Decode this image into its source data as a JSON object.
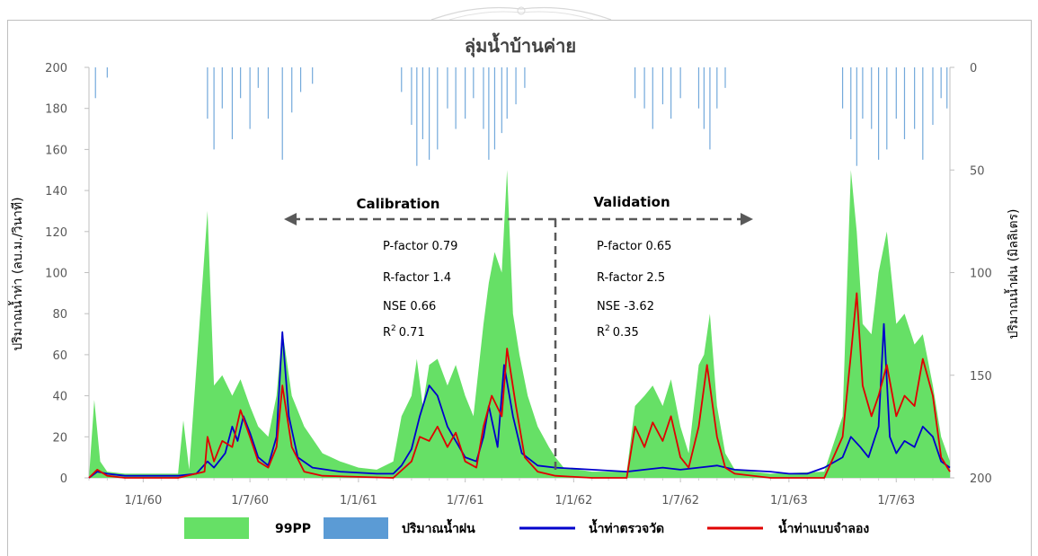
{
  "chart_data": {
    "type": "line",
    "title": "ลุ่มน้ำบ้านค่าย",
    "ylabel_left": "ปริมาณน้ำท่า (ลบ.ม./วินาที)",
    "ylabel_right": "ปริมาณน้ำฝน (มิลลิเตร)",
    "ylim_left": [
      0,
      200
    ],
    "ylim_right": [
      200,
      0
    ],
    "yticks_left": [
      "0",
      "20",
      "40",
      "60",
      "80",
      "100",
      "120",
      "140",
      "160",
      "180",
      "200"
    ],
    "yticks_right": [
      "0",
      "50",
      "100",
      "150",
      "200"
    ],
    "x_start": "1/10/59",
    "x_end": "30/9/63",
    "x_ticks": [
      "1/1/60",
      "1/7/60",
      "1/1/61",
      "1/7/61",
      "1/1/62",
      "1/7/62",
      "1/1/63",
      "1/7/63"
    ],
    "split_date": "1/12/61",
    "periods": {
      "calibration": {
        "label": "Calibration",
        "stats": [
          "P-factor 0.79",
          "R-factor 1.4",
          "NSE 0.66"
        ],
        "r2_value": "0.71"
      },
      "validation": {
        "label": "Validation",
        "stats": [
          "P-factor 0.65",
          "R-factor 2.5",
          "NSE -3.62"
        ],
        "r2_value": "0.35"
      }
    },
    "r2_prefix": "R",
    "r2_sup": "2",
    "legend": [
      {
        "name": "99PP",
        "color": "#66e066",
        "kind": "box"
      },
      {
        "name": "ปริมาณน้ำฝน",
        "color": "#5b9bd5",
        "kind": "box"
      },
      {
        "name": "น้ำท่าตรวจวัด",
        "color": "#0000cc",
        "kind": "line"
      },
      {
        "name": "น้ำท่าแบบจำลอง",
        "color": "#e00000",
        "kind": "line"
      }
    ],
    "series": [
      {
        "name": "น้ำท่าตรวจวัด",
        "color": "#0000cc",
        "points": [
          [
            "1/10/59",
            0
          ],
          [
            "15/10/59",
            3
          ],
          [
            "1/11/59",
            2
          ],
          [
            "1/12/59",
            1
          ],
          [
            "1/1/60",
            1
          ],
          [
            "1/3/60",
            1
          ],
          [
            "1/4/60",
            2
          ],
          [
            "20/4/60",
            8
          ],
          [
            "1/5/60",
            5
          ],
          [
            "20/5/60",
            12
          ],
          [
            "1/6/60",
            25
          ],
          [
            "10/6/60",
            18
          ],
          [
            "20/6/60",
            30
          ],
          [
            "1/7/60",
            22
          ],
          [
            "15/7/60",
            10
          ],
          [
            "1/8/60",
            6
          ],
          [
            "15/8/60",
            20
          ],
          [
            "25/8/60",
            71
          ],
          [
            "5/9/60",
            30
          ],
          [
            "20/9/60",
            10
          ],
          [
            "15/10/60",
            5
          ],
          [
            "1/12/60",
            3
          ],
          [
            "1/2/61",
            2
          ],
          [
            "1/3/61",
            2
          ],
          [
            "15/3/61",
            6
          ],
          [
            "1/4/61",
            14
          ],
          [
            "15/4/61",
            30
          ],
          [
            "1/5/61",
            45
          ],
          [
            "15/5/61",
            40
          ],
          [
            "1/6/61",
            25
          ],
          [
            "15/6/61",
            18
          ],
          [
            "1/7/61",
            10
          ],
          [
            "20/7/61",
            8
          ],
          [
            "1/8/61",
            20
          ],
          [
            "10/8/61",
            35
          ],
          [
            "25/8/61",
            15
          ],
          [
            "5/9/61",
            55
          ],
          [
            "20/9/61",
            30
          ],
          [
            "5/10/61",
            12
          ],
          [
            "1/11/61",
            6
          ],
          [
            "1/12/61",
            5
          ],
          [
            "1/2/62",
            4
          ],
          [
            "1/4/62",
            3
          ],
          [
            "1/5/62",
            4
          ],
          [
            "1/6/62",
            5
          ],
          [
            "1/7/62",
            4
          ],
          [
            "1/8/62",
            5
          ],
          [
            "1/9/62",
            6
          ],
          [
            "1/10/62",
            4
          ],
          [
            "1/12/62",
            3
          ],
          [
            "1/1/63",
            2
          ],
          [
            "1/2/63",
            2
          ],
          [
            "1/3/63",
            5
          ],
          [
            "1/4/63",
            10
          ],
          [
            "15/4/63",
            20
          ],
          [
            "1/5/63",
            15
          ],
          [
            "15/5/63",
            10
          ],
          [
            "1/6/63",
            25
          ],
          [
            "10/6/63",
            75
          ],
          [
            "20/6/63",
            20
          ],
          [
            "1/7/63",
            12
          ],
          [
            "15/7/63",
            18
          ],
          [
            "1/8/63",
            15
          ],
          [
            "15/8/63",
            25
          ],
          [
            "1/9/63",
            20
          ],
          [
            "15/9/63",
            8
          ],
          [
            "30/9/63",
            5
          ]
        ]
      },
      {
        "name": "น้ำท่าแบบจำลอง",
        "color": "#e00000",
        "points": [
          [
            "1/10/59",
            0
          ],
          [
            "15/10/59",
            4
          ],
          [
            "1/11/59",
            1
          ],
          [
            "1/12/59",
            0
          ],
          [
            "1/1/60",
            0
          ],
          [
            "1/3/60",
            0
          ],
          [
            "15/4/60",
            3
          ],
          [
            "20/4/60",
            20
          ],
          [
            "1/5/60",
            8
          ],
          [
            "15/5/60",
            18
          ],
          [
            "1/6/60",
            15
          ],
          [
            "15/6/60",
            33
          ],
          [
            "1/7/60",
            20
          ],
          [
            "15/7/60",
            8
          ],
          [
            "1/8/60",
            5
          ],
          [
            "15/8/60",
            15
          ],
          [
            "25/8/60",
            45
          ],
          [
            "10/9/60",
            15
          ],
          [
            "1/10/60",
            3
          ],
          [
            "1/11/60",
            1
          ],
          [
            "1/3/61",
            0
          ],
          [
            "1/4/61",
            8
          ],
          [
            "15/4/61",
            20
          ],
          [
            "1/5/61",
            18
          ],
          [
            "15/5/61",
            25
          ],
          [
            "1/6/61",
            15
          ],
          [
            "15/6/61",
            22
          ],
          [
            "1/7/61",
            8
          ],
          [
            "20/7/61",
            5
          ],
          [
            "1/8/61",
            25
          ],
          [
            "15/8/61",
            40
          ],
          [
            "1/9/61",
            30
          ],
          [
            "10/9/61",
            63
          ],
          [
            "25/9/61",
            35
          ],
          [
            "10/10/61",
            10
          ],
          [
            "1/11/61",
            3
          ],
          [
            "1/12/61",
            1
          ],
          [
            "1/2/62",
            0
          ],
          [
            "1/4/62",
            0
          ],
          [
            "15/4/62",
            25
          ],
          [
            "1/5/62",
            15
          ],
          [
            "15/5/62",
            27
          ],
          [
            "1/6/62",
            18
          ],
          [
            "15/6/62",
            30
          ],
          [
            "1/7/62",
            10
          ],
          [
            "15/7/62",
            5
          ],
          [
            "1/8/62",
            25
          ],
          [
            "15/8/62",
            55
          ],
          [
            "1/9/62",
            20
          ],
          [
            "15/9/62",
            5
          ],
          [
            "1/10/62",
            2
          ],
          [
            "1/12/62",
            0
          ],
          [
            "1/3/63",
            0
          ],
          [
            "1/4/63",
            20
          ],
          [
            "15/4/63",
            60
          ],
          [
            "25/4/63",
            90
          ],
          [
            "5/5/63",
            45
          ],
          [
            "20/5/63",
            30
          ],
          [
            "1/6/63",
            40
          ],
          [
            "15/6/63",
            55
          ],
          [
            "1/7/63",
            30
          ],
          [
            "15/7/63",
            40
          ],
          [
            "1/8/63",
            35
          ],
          [
            "15/8/63",
            58
          ],
          [
            "1/9/63",
            40
          ],
          [
            "15/9/63",
            10
          ],
          [
            "30/9/63",
            3
          ]
        ]
      },
      {
        "name": "99PP",
        "color": "#66e066",
        "upper": [
          [
            "1/10/59",
            0
          ],
          [
            "10/10/59",
            38
          ],
          [
            "20/10/59",
            8
          ],
          [
            "1/11/59",
            3
          ],
          [
            "1/12/59",
            2
          ],
          [
            "1/2/60",
            2
          ],
          [
            "1/3/60",
            2
          ],
          [
            "10/3/60",
            28
          ],
          [
            "20/3/60",
            4
          ],
          [
            "20/4/60",
            130
          ],
          [
            "1/5/60",
            45
          ],
          [
            "15/5/60",
            50
          ],
          [
            "1/6/60",
            40
          ],
          [
            "15/6/60",
            48
          ],
          [
            "1/7/60",
            35
          ],
          [
            "15/7/60",
            25
          ],
          [
            "1/8/60",
            20
          ],
          [
            "15/8/60",
            40
          ],
          [
            "25/8/60",
            72
          ],
          [
            "10/9/60",
            40
          ],
          [
            "1/10/60",
            25
          ],
          [
            "1/11/60",
            12
          ],
          [
            "1/12/60",
            8
          ],
          [
            "1/1/61",
            5
          ],
          [
            "1/2/61",
            4
          ],
          [
            "1/3/61",
            8
          ],
          [
            "15/3/61",
            30
          ],
          [
            "1/4/61",
            40
          ],
          [
            "10/4/61",
            58
          ],
          [
            "20/4/61",
            35
          ],
          [
            "1/5/61",
            55
          ],
          [
            "15/5/61",
            58
          ],
          [
            "1/6/61",
            45
          ],
          [
            "15/6/61",
            55
          ],
          [
            "1/7/61",
            40
          ],
          [
            "15/7/61",
            30
          ],
          [
            "1/8/61",
            75
          ],
          [
            "10/8/61",
            95
          ],
          [
            "20/8/61",
            110
          ],
          [
            "1/9/61",
            100
          ],
          [
            "10/9/61",
            150
          ],
          [
            "20/9/61",
            80
          ],
          [
            "1/10/61",
            60
          ],
          [
            "15/10/61",
            40
          ],
          [
            "1/11/61",
            25
          ],
          [
            "20/11/61",
            15
          ],
          [
            "1/12/61",
            10
          ],
          [
            "15/12/61",
            5
          ],
          [
            "1/2/62",
            3
          ],
          [
            "1/4/62",
            3
          ],
          [
            "15/4/62",
            35
          ],
          [
            "1/5/62",
            40
          ],
          [
            "15/5/62",
            45
          ],
          [
            "1/6/62",
            35
          ],
          [
            "15/6/62",
            48
          ],
          [
            "1/7/62",
            25
          ],
          [
            "15/7/62",
            12
          ],
          [
            "1/8/62",
            55
          ],
          [
            "10/8/62",
            60
          ],
          [
            "20/8/62",
            80
          ],
          [
            "1/9/62",
            35
          ],
          [
            "15/9/62",
            12
          ],
          [
            "1/10/62",
            4
          ],
          [
            "1/12/62",
            2
          ],
          [
            "1/3/63",
            3
          ],
          [
            "1/4/63",
            30
          ],
          [
            "15/4/63",
            150
          ],
          [
            "25/4/63",
            120
          ],
          [
            "5/5/63",
            75
          ],
          [
            "20/5/63",
            70
          ],
          [
            "1/6/63",
            100
          ],
          [
            "15/6/63",
            120
          ],
          [
            "1/7/63",
            75
          ],
          [
            "15/7/63",
            80
          ],
          [
            "1/8/63",
            65
          ],
          [
            "15/8/63",
            70
          ],
          [
            "1/9/63",
            45
          ],
          [
            "15/9/63",
            20
          ],
          [
            "30/9/63",
            8
          ]
        ],
        "lower": [
          [
            "1/10/59",
            0
          ],
          [
            "30/9/63",
            0
          ]
        ]
      },
      {
        "name": "ปริมาณน้ำฝน",
        "color": "#5b9bd5",
        "axis": "right",
        "points": [
          [
            "12/10/59",
            15
          ],
          [
            "1/11/59",
            5
          ],
          [
            "20/4/60",
            25
          ],
          [
            "1/5/60",
            40
          ],
          [
            "15/5/60",
            20
          ],
          [
            "1/6/60",
            35
          ],
          [
            "15/6/60",
            15
          ],
          [
            "1/7/60",
            30
          ],
          [
            "15/7/60",
            10
          ],
          [
            "1/8/60",
            25
          ],
          [
            "25/8/60",
            45
          ],
          [
            "10/9/60",
            22
          ],
          [
            "25/9/60",
            12
          ],
          [
            "15/10/60",
            8
          ],
          [
            "15/3/61",
            12
          ],
          [
            "1/4/61",
            28
          ],
          [
            "10/4/61",
            48
          ],
          [
            "20/4/61",
            35
          ],
          [
            "1/5/61",
            45
          ],
          [
            "15/5/61",
            40
          ],
          [
            "1/6/61",
            20
          ],
          [
            "15/6/61",
            30
          ],
          [
            "1/7/61",
            25
          ],
          [
            "15/7/61",
            15
          ],
          [
            "1/8/61",
            30
          ],
          [
            "10/8/61",
            45
          ],
          [
            "20/8/61",
            40
          ],
          [
            "1/9/61",
            32
          ],
          [
            "10/9/61",
            25
          ],
          [
            "25/9/61",
            18
          ],
          [
            "10/10/61",
            10
          ],
          [
            "15/4/62",
            15
          ],
          [
            "1/5/62",
            20
          ],
          [
            "15/5/62",
            30
          ],
          [
            "1/6/62",
            18
          ],
          [
            "15/6/62",
            25
          ],
          [
            "1/7/62",
            15
          ],
          [
            "1/8/62",
            20
          ],
          [
            "10/8/62",
            30
          ],
          [
            "20/8/62",
            40
          ],
          [
            "1/9/62",
            20
          ],
          [
            "15/9/62",
            10
          ],
          [
            "1/4/63",
            20
          ],
          [
            "15/4/63",
            35
          ],
          [
            "25/4/63",
            48
          ],
          [
            "5/5/63",
            25
          ],
          [
            "20/5/63",
            30
          ],
          [
            "1/6/63",
            45
          ],
          [
            "15/6/63",
            40
          ],
          [
            "1/7/63",
            25
          ],
          [
            "15/7/63",
            35
          ],
          [
            "1/8/63",
            30
          ],
          [
            "15/8/63",
            45
          ],
          [
            "1/9/63",
            28
          ],
          [
            "15/9/63",
            15
          ],
          [
            "25/9/63",
            20
          ]
        ]
      }
    ]
  }
}
